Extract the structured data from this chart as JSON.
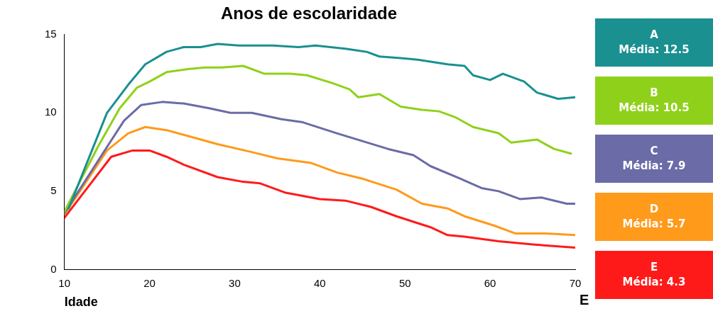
{
  "chart_data": {
    "type": "line",
    "title": "Anos de escolaridade",
    "xlabel": "Idade",
    "xlim": [
      10,
      70
    ],
    "xticks": [
      10,
      20,
      30,
      40,
      50,
      60,
      70
    ],
    "ylim": [
      0,
      15
    ],
    "yticks": [
      0,
      5,
      10,
      15
    ],
    "grid": false,
    "legend": "right",
    "marker": "none",
    "line_style": "solid",
    "annotations": [
      "Média: 12.5",
      "Média: 10.5",
      "Média: 7.9",
      "Média: 5.7",
      "Média: 4.3",
      "E"
    ],
    "series": [
      {
        "name": "A",
        "color": "#1a9090",
        "x": [
          10.5,
          15,
          17.5,
          19.5,
          22,
          24,
          26,
          28,
          30.5,
          34.5,
          37.5,
          39.5,
          43,
          45.5,
          47,
          49.5,
          51.5,
          55,
          57,
          58,
          60,
          61.5,
          64,
          65.5,
          68,
          70
        ],
        "values": [
          3.9,
          10.0,
          11.8,
          13.1,
          13.9,
          14.2,
          14.2,
          14.4,
          14.3,
          14.3,
          14.2,
          14.3,
          14.1,
          13.9,
          13.6,
          13.5,
          13.4,
          13.1,
          13.0,
          12.4,
          12.1,
          12.5,
          12.0,
          11.3,
          10.9,
          11.0
        ]
      },
      {
        "name": "B",
        "color": "#8fd11a",
        "x": [
          10,
          14,
          16.5,
          18.5,
          20,
          22,
          24.5,
          26.5,
          28.5,
          31,
          33.5,
          36.5,
          38.5,
          41.5,
          43.5,
          44.5,
          47,
          49.5,
          52,
          54,
          56,
          58,
          61,
          62.5,
          65.5,
          67.5,
          69.5
        ],
        "values": [
          3.7,
          7.9,
          10.3,
          11.6,
          12.0,
          12.6,
          12.8,
          12.9,
          12.9,
          13.0,
          12.5,
          12.5,
          12.4,
          11.9,
          11.5,
          11.0,
          11.2,
          10.4,
          10.2,
          10.1,
          9.7,
          9.1,
          8.7,
          8.1,
          8.3,
          7.7,
          7.4
        ]
      },
      {
        "name": "C",
        "color": "#6b6ba8",
        "x": [
          10,
          14.5,
          17,
          19,
          21.5,
          24,
          27,
          29.5,
          32,
          35.5,
          38,
          42,
          45,
          48,
          51,
          53,
          56.5,
          59,
          61,
          63.5,
          66,
          69,
          70
        ],
        "values": [
          3.6,
          7.4,
          9.5,
          10.5,
          10.7,
          10.6,
          10.3,
          10.0,
          10.0,
          9.6,
          9.4,
          8.7,
          8.2,
          7.7,
          7.3,
          6.6,
          5.8,
          5.2,
          5.0,
          4.5,
          4.6,
          4.2,
          4.2
        ]
      },
      {
        "name": "D",
        "color": "#ff9a1a",
        "x": [
          10,
          15,
          17.5,
          19.5,
          22,
          24,
          28,
          32,
          35,
          39,
          42,
          45,
          49,
          52,
          55,
          57,
          60.5,
          63,
          66.5,
          70
        ],
        "values": [
          3.5,
          7.6,
          8.7,
          9.1,
          8.9,
          8.6,
          8.0,
          7.5,
          7.1,
          6.8,
          6.2,
          5.8,
          5.1,
          4.2,
          3.9,
          3.4,
          2.8,
          2.3,
          2.3,
          2.2
        ]
      },
      {
        "name": "E",
        "color": "#ff1a1a",
        "x": [
          10,
          15.5,
          18,
          20,
          22,
          24,
          28,
          31,
          33,
          36,
          40,
          43,
          46,
          49,
          53,
          55,
          57,
          61,
          65,
          70
        ],
        "values": [
          3.3,
          7.2,
          7.6,
          7.6,
          7.2,
          6.7,
          5.9,
          5.6,
          5.5,
          4.9,
          4.5,
          4.4,
          4.0,
          3.4,
          2.7,
          2.2,
          2.1,
          1.8,
          1.6,
          1.4
        ]
      }
    ]
  }
}
